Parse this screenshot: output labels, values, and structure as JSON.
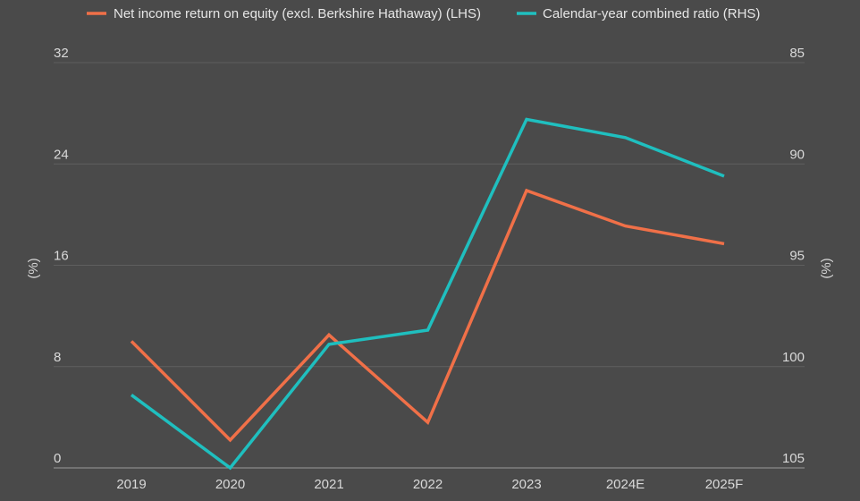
{
  "chart_data": {
    "type": "line",
    "categories": [
      "2019",
      "2020",
      "2021",
      "2022",
      "2023",
      "2024E",
      "2025F"
    ],
    "series": [
      {
        "name": "Net income return on equity (excl. Berkshire Hathaway) (LHS)",
        "axis": "left",
        "color": "#f07048",
        "values": [
          10.0,
          2.2,
          10.5,
          3.6,
          21.9,
          19.1,
          17.7
        ]
      },
      {
        "name": "Calendar-year combined ratio (RHS)",
        "axis": "right",
        "color": "#1fbfbf",
        "values": [
          101.4,
          105.0,
          98.9,
          98.2,
          87.8,
          88.7,
          90.6
        ]
      }
    ],
    "y_left": {
      "label": "(%)",
      "ticks": [
        0,
        8,
        16,
        24,
        32
      ],
      "range": [
        0,
        32
      ]
    },
    "y_right": {
      "label": "(%)",
      "ticks": [
        85,
        90,
        95,
        100,
        105
      ],
      "range": [
        85,
        105
      ],
      "inverted": true
    },
    "grid": true,
    "legend": "top"
  }
}
